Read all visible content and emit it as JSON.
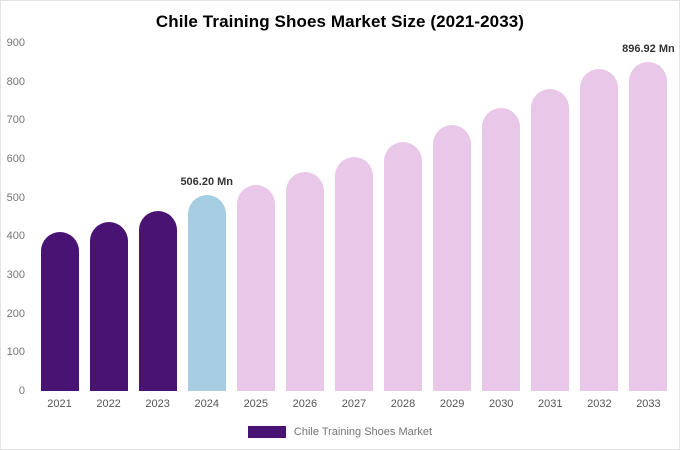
{
  "chart_data": {
    "type": "bar",
    "title": "Chile Training Shoes Market Size (2021-2033)",
    "xlabel": "",
    "ylabel": "",
    "ylim": [
      0,
      900
    ],
    "yticks": [
      0,
      100,
      200,
      300,
      400,
      500,
      600,
      700,
      800,
      900
    ],
    "grid": false,
    "unit": "Mn",
    "categories": [
      "2021",
      "2022",
      "2023",
      "2024",
      "2025",
      "2026",
      "2027",
      "2028",
      "2029",
      "2030",
      "2031",
      "2032",
      "2033"
    ],
    "bars": [
      {
        "year": "2021",
        "value": 410,
        "color": "#491374"
      },
      {
        "year": "2022",
        "value": 436,
        "color": "#491374"
      },
      {
        "year": "2023",
        "value": 465,
        "color": "#491374"
      },
      {
        "year": "2024",
        "value": 506.2,
        "color": "#a7cde2",
        "label": "506.20 Mn"
      },
      {
        "year": "2025",
        "value": 533,
        "color": "#e8c7e8"
      },
      {
        "year": "2026",
        "value": 567,
        "color": "#e8c7e8"
      },
      {
        "year": "2027",
        "value": 605,
        "color": "#e8c7e8"
      },
      {
        "year": "2028",
        "value": 645,
        "color": "#e8c7e8"
      },
      {
        "year": "2029",
        "value": 687,
        "color": "#e8c7e8"
      },
      {
        "year": "2030",
        "value": 733,
        "color": "#e8c7e8"
      },
      {
        "year": "2031",
        "value": 781,
        "color": "#e8c7e8"
      },
      {
        "year": "2032",
        "value": 833,
        "color": "#e8c7e8"
      },
      {
        "year": "2033",
        "value": 896.92,
        "color": "#e8c7e8",
        "label": "896.92 Mn"
      }
    ],
    "colors": {
      "historical": "#491374",
      "highlight": "#a7cde2",
      "forecast": "#e8c7e8"
    },
    "legend": {
      "position": "bottom",
      "label": "Chile Training Shoes Market",
      "swatch_color": "#491374"
    }
  }
}
